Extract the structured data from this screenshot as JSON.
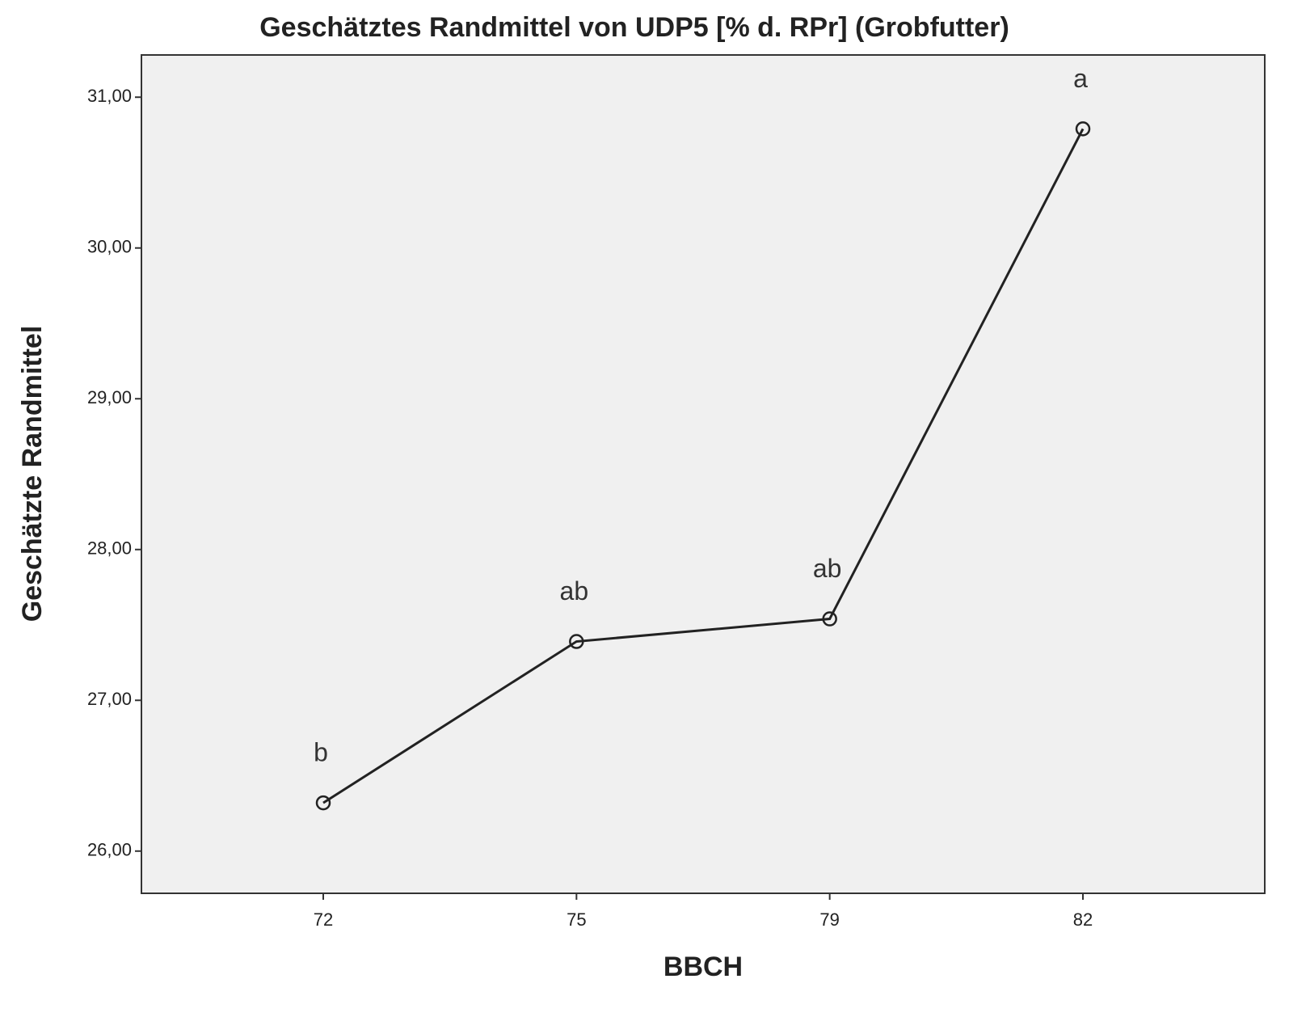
{
  "chart_data": {
    "type": "line",
    "title": "Geschätztes Randmittel von UDP5 [% d. RPr] (Grobfutter)",
    "x_label": "BBCH",
    "y_label": "Geschätzte Randmittel",
    "categories": [
      "72",
      "75",
      "79",
      "82"
    ],
    "values": [
      26.32,
      27.39,
      27.54,
      30.79
    ],
    "annotations": [
      "b",
      "ab",
      "ab",
      "a"
    ],
    "color": "#222222",
    "ylim": [
      25.72,
      31.28
    ],
    "yticks": [
      {
        "value": 26,
        "label": "26,00"
      },
      {
        "value": 27,
        "label": "27,00"
      },
      {
        "value": 28,
        "label": "28,00"
      },
      {
        "value": 29,
        "label": "29,00"
      },
      {
        "value": 30,
        "label": "30,00"
      },
      {
        "value": 31,
        "label": "31,00"
      }
    ],
    "grid": false
  }
}
